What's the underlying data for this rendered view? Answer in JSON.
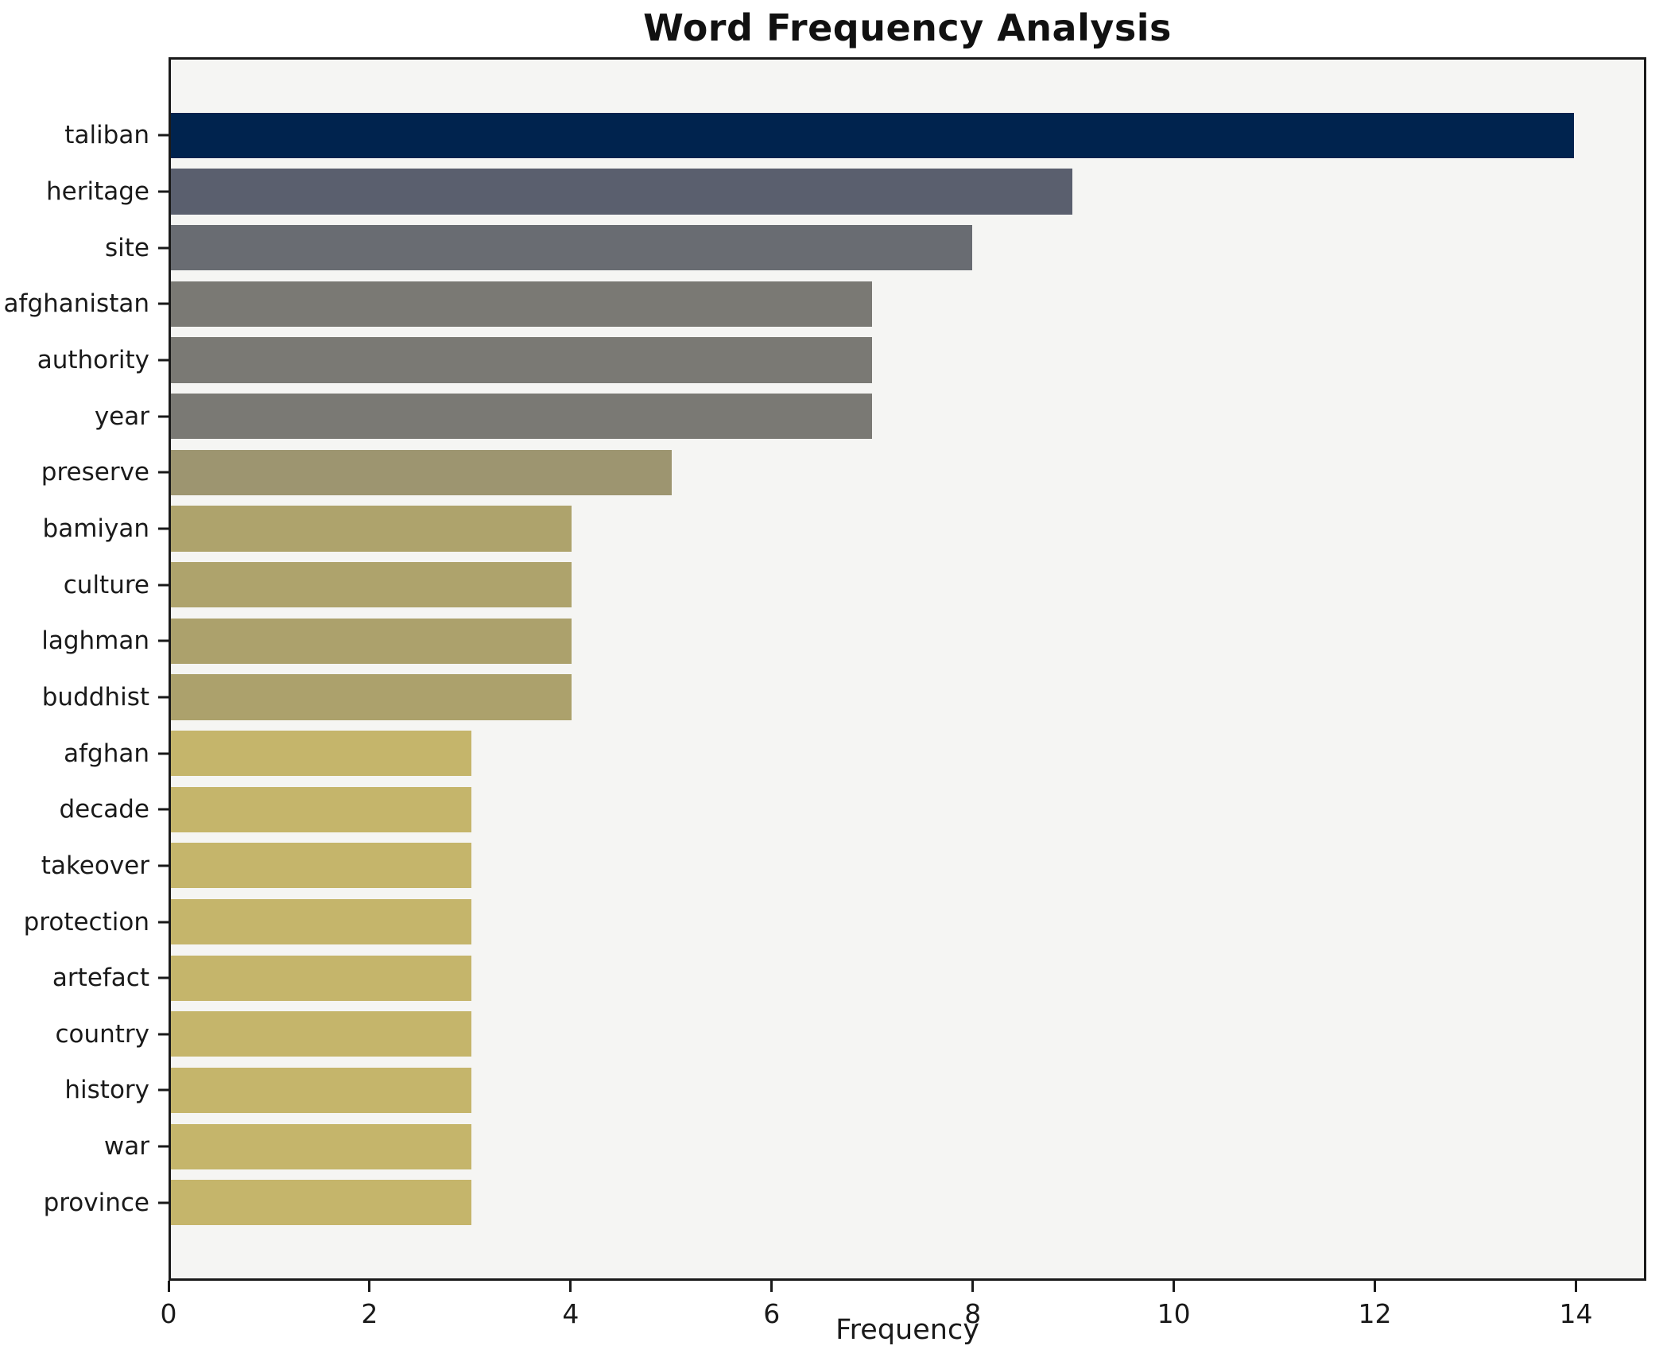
{
  "chart_data": {
    "type": "bar",
    "orientation": "horizontal",
    "title": "Word Frequency Analysis",
    "xlabel": "Frequency",
    "ylabel": "",
    "xlim": [
      0,
      14.7
    ],
    "xticks": [
      "0",
      "2",
      "4",
      "6",
      "8",
      "10",
      "12",
      "14"
    ],
    "xtick_values": [
      0,
      2,
      4,
      6,
      8,
      10,
      12,
      14
    ],
    "grid": false,
    "legend": "none",
    "categories": [
      "taliban",
      "heritage",
      "site",
      "afghanistan",
      "authority",
      "year",
      "preserve",
      "bamiyan",
      "culture",
      "laghman",
      "buddhist",
      "afghan",
      "decade",
      "takeover",
      "protection",
      "artefact",
      "country",
      "history",
      "war",
      "province"
    ],
    "values": [
      14,
      9,
      8,
      7,
      7,
      7,
      5,
      4,
      4,
      4,
      4,
      3,
      3,
      3,
      3,
      3,
      3,
      3,
      3,
      3
    ],
    "bar_colors": [
      "#00234e",
      "#5a5f6e",
      "#696c72",
      "#7a7974",
      "#7a7974",
      "#7a7974",
      "#9d9570",
      "#aea36c",
      "#aea36c",
      "#aca16c",
      "#aca16c",
      "#c5b56b",
      "#c5b56b",
      "#c5b56b",
      "#c5b56b",
      "#c5b56b",
      "#c5b56b",
      "#c5b56b",
      "#c5b56b",
      "#c5b56b"
    ],
    "colors": {
      "figure_bg": "#ffffff",
      "plot_bg": "#f5f5f3",
      "spine": "#1a1a1a",
      "text": "#1a1a1a"
    }
  }
}
